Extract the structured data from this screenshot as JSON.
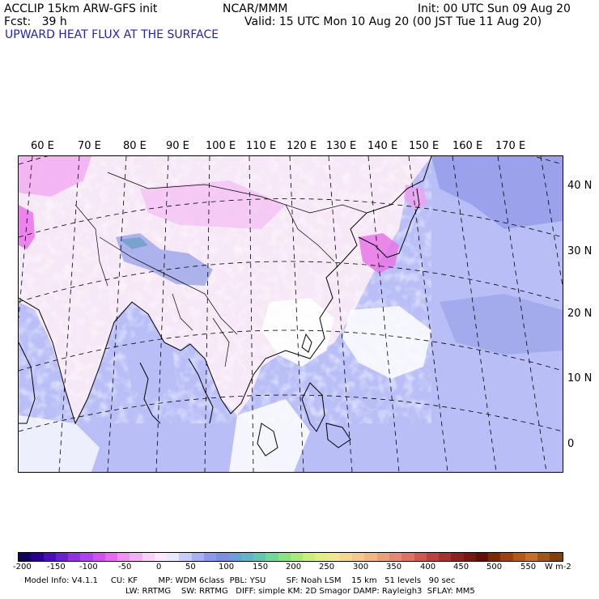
{
  "header": {
    "model_line": "ACCLIP 15km ARW-GFS init",
    "forecast_line": "Fcst:   39 h",
    "center": "NCAR/MMM",
    "init": "Init: 00 UTC Sun 09 Aug 20",
    "valid": "Valid: 15 UTC Mon 10 Aug 20 (00 JST Tue 11 Aug 20)",
    "field": "UPWARD HEAT FLUX AT THE SURFACE"
  },
  "map": {
    "lon_labels": [
      "60 E",
      "70 E",
      "80 E",
      "90 E",
      "100 E",
      "110 E",
      "120 E",
      "130 E",
      "140 E",
      "150 E",
      "160 E",
      "170 E"
    ],
    "lat_labels": [
      "40 N",
      "30 N",
      "20 N",
      "10 N",
      "0"
    ]
  },
  "colorbar": {
    "labels": [
      "-200",
      "-150",
      "-100",
      "-50",
      "0",
      "50",
      "100",
      "150",
      "200",
      "250",
      "300",
      "350",
      "400",
      "450",
      "500",
      "550"
    ],
    "unit": "W m-2",
    "colors": [
      "#14005f",
      "#2a0090",
      "#4a10b8",
      "#6a20d0",
      "#9030e0",
      "#b040f0",
      "#d050f0",
      "#e868f0",
      "#f090f0",
      "#f4b0f4",
      "#f8d0f8",
      "#fce8fc",
      "#e8e8ff",
      "#c8ccf8",
      "#a8b0f4",
      "#8c98ec",
      "#7890e0",
      "#6aa0d8",
      "#60b4c8",
      "#60c8b0",
      "#70d898",
      "#88e480",
      "#a8ec78",
      "#c8f078",
      "#e0f080",
      "#f0e890",
      "#f4d890",
      "#f4c888",
      "#f0b880",
      "#eca078",
      "#e88870",
      "#e07060",
      "#d05850",
      "#c04040",
      "#a83030",
      "#902020",
      "#781810",
      "#601008",
      "#802800",
      "#a04010",
      "#b85818",
      "#c87028",
      "#a05818",
      "#804008"
    ]
  },
  "footer": {
    "line1": "Model Info: V4.1.1     CU: KF        MP: WDM 6class  PBL: YSU        SF: Noah LSM    15 km   51 levels   90 sec",
    "line2": "LW: RRTMG    SW: RRTMG   DIFF: simple KM: 2D Smagor DAMP: Rayleigh3  SFLAY: MM5"
  }
}
